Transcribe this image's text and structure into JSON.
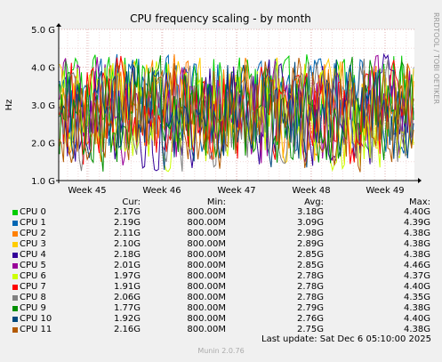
{
  "chart_data": {
    "type": "line",
    "title": "CPU frequency scaling - by month",
    "ylabel": "Hz",
    "side_label": "RRDTOOL / TOBI OETIKER",
    "y_ticks": [
      "1.0 G",
      "2.0 G",
      "3.0 G",
      "4.0 G",
      "5.0 G"
    ],
    "ylim": [
      1.0,
      5.0
    ],
    "x_ticks": [
      "Week 45",
      "Week 46",
      "Week 47",
      "Week 48",
      "Week 49"
    ],
    "grid": true,
    "columns": {
      "cur": "Cur:",
      "min": "Min:",
      "avg": "Avg:",
      "max": "Max:"
    },
    "series": [
      {
        "name": "CPU 0",
        "color": "#00cc00",
        "cur": "2.17G",
        "min": "800.00M",
        "avg": "3.18G",
        "max": "4.40G"
      },
      {
        "name": "CPU 1",
        "color": "#0066b3",
        "cur": "2.19G",
        "min": "800.00M",
        "avg": "3.09G",
        "max": "4.39G"
      },
      {
        "name": "CPU 2",
        "color": "#ff8000",
        "cur": "2.11G",
        "min": "800.00M",
        "avg": "2.98G",
        "max": "4.38G"
      },
      {
        "name": "CPU 3",
        "color": "#ffcc00",
        "cur": "2.10G",
        "min": "800.00M",
        "avg": "2.89G",
        "max": "4.38G"
      },
      {
        "name": "CPU 4",
        "color": "#330099",
        "cur": "2.18G",
        "min": "800.00M",
        "avg": "2.85G",
        "max": "4.38G"
      },
      {
        "name": "CPU 5",
        "color": "#990099",
        "cur": "2.01G",
        "min": "800.00M",
        "avg": "2.85G",
        "max": "4.46G"
      },
      {
        "name": "CPU 6",
        "color": "#ccff00",
        "cur": "1.97G",
        "min": "800.00M",
        "avg": "2.78G",
        "max": "4.37G"
      },
      {
        "name": "CPU 7",
        "color": "#ff0000",
        "cur": "1.91G",
        "min": "800.00M",
        "avg": "2.78G",
        "max": "4.40G"
      },
      {
        "name": "CPU 8",
        "color": "#808080",
        "cur": "2.06G",
        "min": "800.00M",
        "avg": "2.78G",
        "max": "4.35G"
      },
      {
        "name": "CPU 9",
        "color": "#008f00",
        "cur": "1.77G",
        "min": "800.00M",
        "avg": "2.79G",
        "max": "4.38G"
      },
      {
        "name": "CPU 10",
        "color": "#00487d",
        "cur": "1.92G",
        "min": "800.00M",
        "avg": "2.76G",
        "max": "4.40G"
      },
      {
        "name": "CPU 11",
        "color": "#b35a00",
        "cur": "2.16G",
        "min": "800.00M",
        "avg": "2.75G",
        "max": "4.38G"
      }
    ],
    "last_update": "Last update: Sat Dec  6 05:10:00 2025",
    "footer": "Munin 2.0.76"
  }
}
